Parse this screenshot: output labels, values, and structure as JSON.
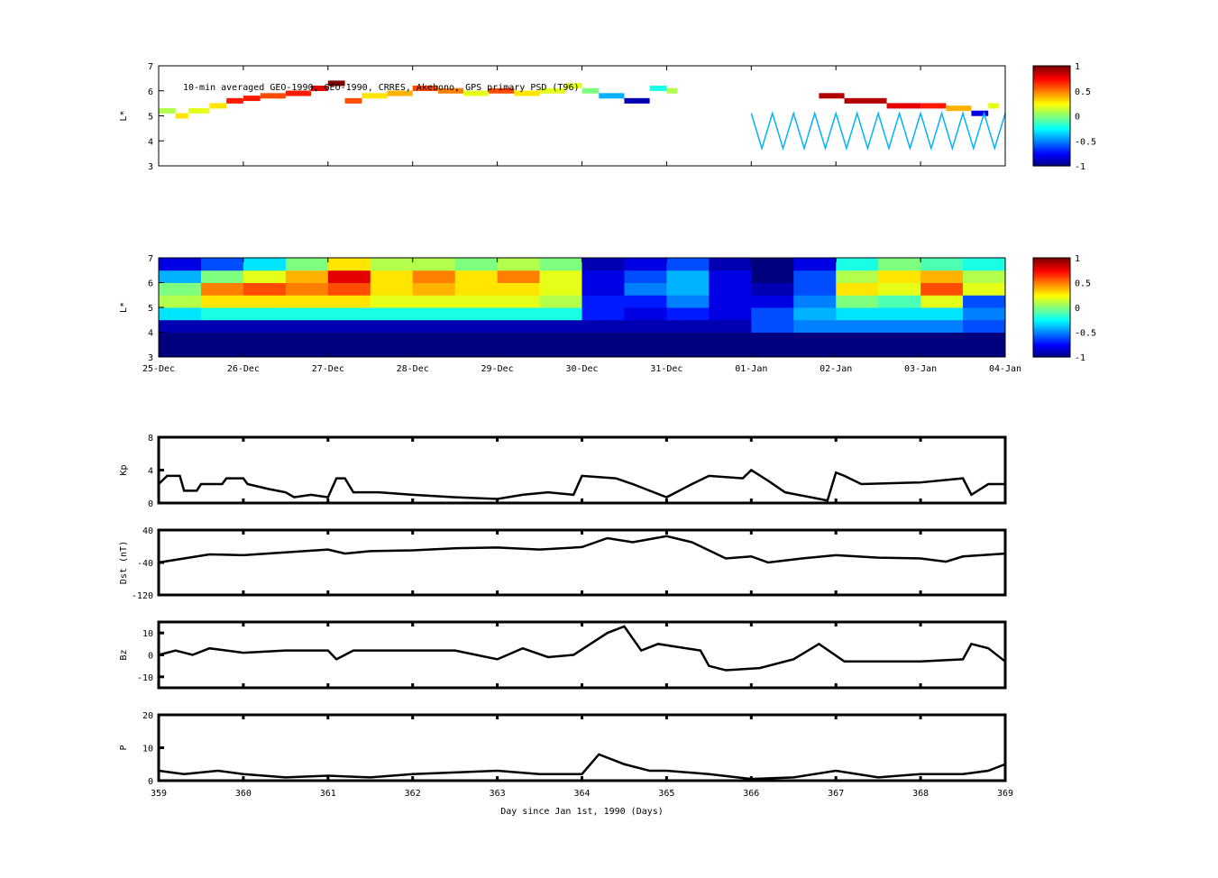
{
  "chart_data": [
    {
      "type": "scatter",
      "title": "10-min averaged GEO-1990, GEO-1990, CRRES, Akebono, GPS  primary PSD (T96)",
      "ylabel": "L*",
      "ylim": [
        3,
        7
      ],
      "yticks": [
        3,
        4,
        5,
        6,
        7
      ],
      "xlim": [
        359,
        369
      ],
      "points": [
        [
          359.0,
          5.2,
          0.1
        ],
        [
          359.2,
          5.0,
          0.3
        ],
        [
          359.35,
          5.2,
          0.2
        ],
        [
          359.6,
          5.4,
          0.3
        ],
        [
          359.8,
          5.6,
          0.7
        ],
        [
          360.0,
          5.7,
          0.7
        ],
        [
          360.2,
          5.8,
          0.6
        ],
        [
          360.5,
          5.9,
          0.7
        ],
        [
          360.8,
          6.1,
          0.8
        ],
        [
          361.0,
          6.3,
          1.0
        ],
        [
          361.2,
          5.6,
          0.6
        ],
        [
          361.4,
          5.8,
          0.3
        ],
        [
          361.7,
          5.9,
          0.4
        ],
        [
          362.0,
          6.1,
          0.6
        ],
        [
          362.3,
          6.0,
          0.5
        ],
        [
          362.6,
          5.9,
          0.2
        ],
        [
          362.9,
          6.0,
          0.6
        ],
        [
          363.2,
          5.9,
          0.3
        ],
        [
          363.5,
          6.0,
          0.2
        ],
        [
          363.8,
          6.2,
          0.2
        ],
        [
          364.0,
          6.0,
          0.0
        ],
        [
          364.2,
          5.8,
          -0.4
        ],
        [
          364.5,
          5.6,
          -0.9
        ],
        [
          364.8,
          6.1,
          -0.2
        ],
        [
          365.0,
          6.0,
          0.1
        ],
        [
          366.8,
          5.8,
          0.9
        ],
        [
          367.1,
          5.6,
          0.9
        ],
        [
          367.6,
          5.4,
          0.8
        ],
        [
          368.0,
          5.4,
          0.7
        ],
        [
          368.3,
          5.3,
          0.4
        ],
        [
          368.6,
          5.1,
          -0.8
        ],
        [
          368.8,
          5.4,
          0.2
        ]
      ],
      "gps_track": {
        "start": 366.0,
        "end": 369,
        "period_days": 0.25,
        "lmax": 5.1,
        "lmin": 3.7,
        "value": -0.4
      },
      "colorbar": {
        "ticks": [
          1,
          0.5,
          0,
          -0.5,
          -1
        ]
      }
    },
    {
      "type": "heatmap",
      "ylabel": "L*",
      "ylim": [
        3,
        7
      ],
      "yticks": [
        3,
        4,
        5,
        6,
        7
      ],
      "xlim": [
        359,
        369
      ],
      "xticklabels": [
        "25-Dec",
        "26-Dec",
        "27-Dec",
        "28-Dec",
        "29-Dec",
        "30-Dec",
        "31-Dec",
        "01-Jan",
        "02-Jan",
        "03-Jan",
        "04-Jan"
      ],
      "cell_days": 0.5,
      "cell_L": 0.5,
      "grid": [
        [
          -1,
          -1,
          -0.9,
          -0.3,
          0.1,
          0,
          -0.4,
          -0.8
        ],
        [
          -1,
          -1,
          -0.9,
          -0.2,
          0.3,
          0.5,
          0,
          -0.6
        ],
        [
          -1,
          -1,
          -0.9,
          -0.2,
          0.3,
          0.6,
          0.2,
          -0.3
        ],
        [
          -1,
          -1,
          -0.9,
          -0.2,
          0.3,
          0.5,
          0.4,
          0
        ],
        [
          -1,
          -1,
          -0.9,
          -0.2,
          0.3,
          0.6,
          0.8,
          0.3
        ],
        [
          -1,
          -1,
          -0.9,
          -0.2,
          0.2,
          0.3,
          0.3,
          0.1
        ],
        [
          -1,
          -1,
          -0.9,
          -0.2,
          0.2,
          0.4,
          0.5,
          0.1
        ],
        [
          -1,
          -1,
          -0.9,
          -0.2,
          0.2,
          0.3,
          0.3,
          0
        ],
        [
          -1,
          -1,
          -0.9,
          -0.2,
          0.2,
          0.3,
          0.5,
          0.1
        ],
        [
          -1,
          -1,
          -0.9,
          -0.2,
          0.1,
          0.2,
          0.2,
          0
        ],
        [
          -1,
          -1,
          -0.9,
          -0.7,
          -0.7,
          -0.8,
          -0.8,
          -0.9
        ],
        [
          -1,
          -1,
          -0.9,
          -0.8,
          -0.7,
          -0.5,
          -0.6,
          -0.8
        ],
        [
          -1,
          -1,
          -0.9,
          -0.7,
          -0.5,
          -0.4,
          -0.4,
          -0.6
        ],
        [
          -1,
          -1,
          -0.9,
          -0.8,
          -0.8,
          -0.8,
          -0.8,
          -0.9
        ],
        [
          -1,
          -1,
          -0.6,
          -0.6,
          -0.8,
          -0.9,
          -1,
          -1
        ],
        [
          -1,
          -1,
          -0.5,
          -0.4,
          -0.5,
          -0.6,
          -0.6,
          -0.8
        ],
        [
          -1,
          -1,
          -0.5,
          -0.3,
          0,
          0.3,
          0.1,
          -0.2
        ],
        [
          -1,
          -1,
          -0.5,
          -0.3,
          -0.1,
          0.2,
          0.3,
          0
        ],
        [
          -1,
          -1,
          -0.5,
          -0.3,
          0.2,
          0.6,
          0.4,
          -0.1
        ],
        [
          -1,
          -1,
          -0.6,
          -0.5,
          -0.6,
          0.2,
          0.1,
          -0.2
        ]
      ],
      "colorbar": {
        "ticks": [
          1,
          0.5,
          0,
          -0.5,
          -1
        ]
      }
    },
    {
      "type": "line",
      "ylabel": "Kp",
      "ylim": [
        0,
        8
      ],
      "yticks": [
        0,
        4,
        8
      ],
      "xlim": [
        359,
        369
      ],
      "x": [
        359,
        359.1,
        359.25,
        359.3,
        359.45,
        359.5,
        359.75,
        359.8,
        360,
        360.05,
        360.3,
        360.5,
        360.6,
        360.8,
        361,
        361.1,
        361.2,
        361.3,
        361.6,
        362,
        362.5,
        363,
        363.3,
        363.6,
        363.9,
        364,
        364.4,
        364.6,
        365,
        365.3,
        365.5,
        365.9,
        366,
        366.2,
        366.4,
        366.9,
        367,
        367.1,
        367.3,
        368,
        368.5,
        368.6,
        368.8,
        369
      ],
      "y": [
        2.3,
        3.3,
        3.3,
        1.5,
        1.5,
        2.3,
        2.3,
        3,
        3,
        2.3,
        1.7,
        1.3,
        0.7,
        1,
        0.7,
        3,
        3,
        1.3,
        1.3,
        1,
        0.7,
        0.5,
        1,
        1.3,
        1,
        3.3,
        3,
        2.3,
        0.7,
        2.3,
        3.3,
        3,
        4,
        2.7,
        1.3,
        0.3,
        3.7,
        3.3,
        2.3,
        2.5,
        3,
        1,
        2.3,
        2.3
      ]
    },
    {
      "type": "line",
      "ylabel": "Dst (nT)",
      "ylim": [
        -120,
        40
      ],
      "yticks": [
        -120,
        -40,
        40
      ],
      "xlim": [
        359,
        369
      ],
      "x": [
        359,
        359.3,
        359.6,
        360,
        360.5,
        361,
        361.2,
        361.5,
        362,
        362.5,
        363,
        363.5,
        364,
        364.3,
        364.6,
        365,
        365.3,
        365.7,
        366,
        366.2,
        366.6,
        367,
        367.5,
        368,
        368.3,
        368.5,
        369
      ],
      "y": [
        -40,
        -30,
        -20,
        -22,
        -15,
        -8,
        -18,
        -12,
        -10,
        -5,
        -3,
        -8,
        -2,
        20,
        10,
        25,
        10,
        -30,
        -25,
        -40,
        -30,
        -22,
        -28,
        -30,
        -38,
        -25,
        -18
      ]
    },
    {
      "type": "line",
      "ylabel": "Bz",
      "ylim": [
        -15,
        15
      ],
      "yticks": [
        -10,
        0,
        10
      ],
      "xlim": [
        359,
        369
      ],
      "x": [
        359,
        359.2,
        359.4,
        359.6,
        360,
        360.5,
        361,
        361.1,
        361.3,
        362,
        362.5,
        363,
        363.3,
        363.6,
        363.9,
        364.3,
        364.5,
        364.7,
        364.9,
        365.4,
        365.5,
        365.7,
        366.1,
        366.5,
        366.8,
        367.1,
        367.5,
        368,
        368.5,
        368.6,
        368.8,
        369
      ],
      "y": [
        0,
        2,
        0,
        3,
        1,
        2,
        2,
        -2,
        2,
        2,
        2,
        -2,
        3,
        -1,
        0,
        10,
        13,
        2,
        5,
        2,
        -5,
        -7,
        -6,
        -2,
        5,
        -3,
        -3,
        -3,
        -2,
        5,
        3,
        -3
      ]
    },
    {
      "type": "line",
      "ylabel": "P",
      "ylim": [
        0,
        20
      ],
      "yticks": [
        0,
        10,
        20
      ],
      "xlim": [
        359,
        369
      ],
      "xlabel": "Day since Jan 1st, 1990 (Days)",
      "xticks": [
        359,
        360,
        361,
        362,
        363,
        364,
        365,
        366,
        367,
        368,
        369
      ],
      "x": [
        359,
        359.3,
        359.7,
        360,
        360.5,
        361,
        361.5,
        362,
        362.5,
        363,
        363.5,
        364,
        364.2,
        364.5,
        364.8,
        365,
        365.5,
        366,
        366.5,
        367,
        367.5,
        368,
        368.5,
        368.8,
        369
      ],
      "y": [
        3,
        2,
        3,
        2,
        1,
        1.5,
        1,
        2,
        2.5,
        3,
        2,
        2,
        8,
        5,
        3,
        3,
        2,
        0.5,
        1,
        3,
        1,
        2,
        2,
        3,
        5
      ]
    }
  ]
}
